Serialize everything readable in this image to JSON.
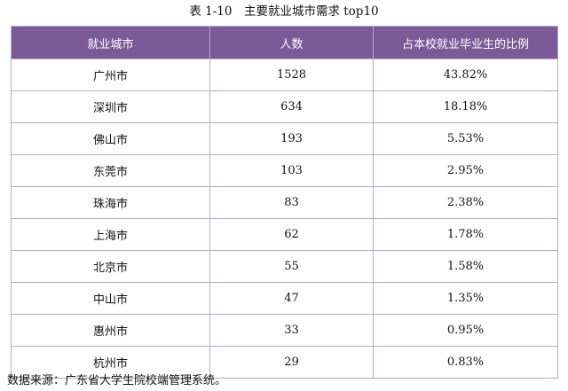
{
  "caption": "表 1-10　主要就业城市需求 top10",
  "table": {
    "headers": [
      "就业城市",
      "人数",
      "占本校就业毕业生的比例"
    ],
    "rows": [
      [
        "广州市",
        "1528",
        "43.82%"
      ],
      [
        "深圳市",
        "634",
        "18.18%"
      ],
      [
        "佛山市",
        "193",
        "5.53%"
      ],
      [
        "东莞市",
        "103",
        "2.95%"
      ],
      [
        "珠海市",
        "83",
        "2.38%"
      ],
      [
        "上海市",
        "62",
        "1.78%"
      ],
      [
        "北京市",
        "55",
        "1.58%"
      ],
      [
        "中山市",
        "47",
        "1.35%"
      ],
      [
        "惠州市",
        "33",
        "0.95%"
      ],
      [
        "杭州市",
        "29",
        "0.83%"
      ]
    ]
  },
  "source": "数据来源：广东省大学生院校端管理系统。",
  "colors": {
    "header_bg": "#7b5a97",
    "header_text": "#ffffff",
    "border": "#b9a9cc"
  }
}
